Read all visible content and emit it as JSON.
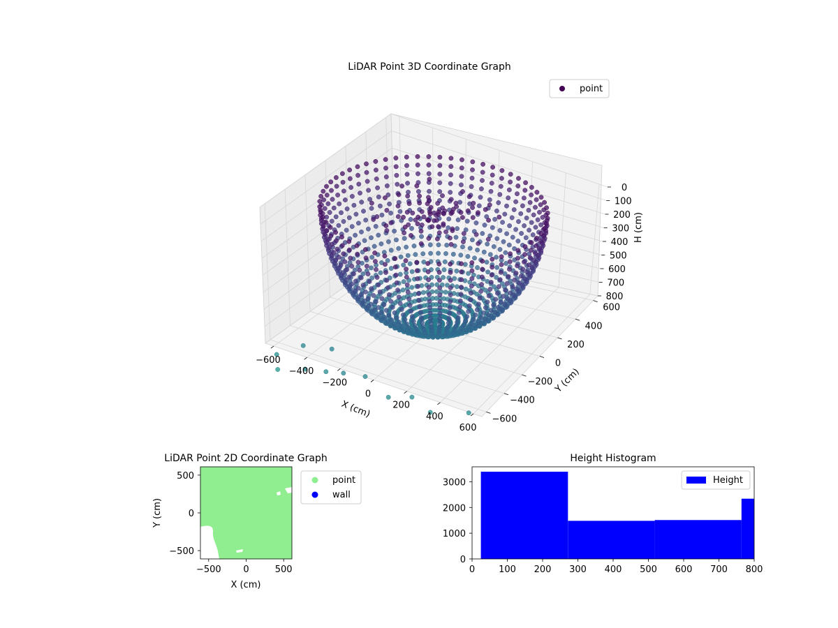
{
  "chart_data": [
    {
      "type": "scatter",
      "projection": "3d",
      "title": "LiDAR Point 3D Coordinate Graph",
      "xlabel": "X (cm)",
      "ylabel": "Y (cm)",
      "zlabel": "H (cm)",
      "xticks": [
        -600,
        -400,
        -200,
        0,
        200,
        400,
        600
      ],
      "yticks": [
        -600,
        -400,
        -200,
        0,
        200,
        400,
        600
      ],
      "zticks": [
        0,
        100,
        200,
        300,
        400,
        500,
        600,
        700,
        800
      ],
      "xlim": [
        -650,
        650
      ],
      "ylim": [
        -650,
        650
      ],
      "zlim": [
        800,
        0
      ],
      "zaxis_inverted": true,
      "colormap": "viridis",
      "grid": true,
      "legend": {
        "position": "top-right",
        "entries": [
          {
            "label": "point",
            "color": "#440154"
          }
        ]
      },
      "series": [
        {
          "name": "point",
          "shape": "hemispherical bowl of rings",
          "radius_cm": 600,
          "depth_cm": 800
        }
      ]
    },
    {
      "type": "scatter",
      "title": "LiDAR Point 2D Coordinate Graph",
      "xlabel": "X (cm)",
      "ylabel": "Y (cm)",
      "xticks": [
        -500,
        0,
        500
      ],
      "yticks": [
        -500,
        0,
        500
      ],
      "xlim": [
        -610,
        610
      ],
      "ylim": [
        -610,
        610
      ],
      "legend": {
        "position": "outside-right",
        "entries": [
          {
            "label": "point",
            "color": "#90ee90"
          },
          {
            "label": "wall",
            "color": "#0000ff"
          }
        ]
      },
      "series": [
        {
          "name": "point",
          "color": "#90ee90"
        },
        {
          "name": "wall",
          "color": "#0000ff"
        }
      ]
    },
    {
      "type": "bar",
      "subtype": "histogram",
      "title": "Height Histogram",
      "xlabel": "",
      "ylabel": "",
      "xticks": [
        0,
        100,
        200,
        300,
        400,
        500,
        600,
        700,
        800
      ],
      "yticks": [
        0,
        1000,
        2000,
        3000
      ],
      "xlim": [
        0,
        800
      ],
      "ylim": [
        0,
        3580
      ],
      "color": "#0000ff",
      "legend": {
        "position": "top-right",
        "entries": [
          {
            "label": "Height",
            "color": "#0000ff"
          }
        ]
      },
      "bins": [
        {
          "x0": 25,
          "x1": 272,
          "count": 3390
        },
        {
          "x0": 272,
          "x1": 518,
          "count": 1480
        },
        {
          "x0": 518,
          "x1": 764,
          "count": 1510
        },
        {
          "x0": 764,
          "x1": 800,
          "count": 2340
        }
      ]
    }
  ]
}
